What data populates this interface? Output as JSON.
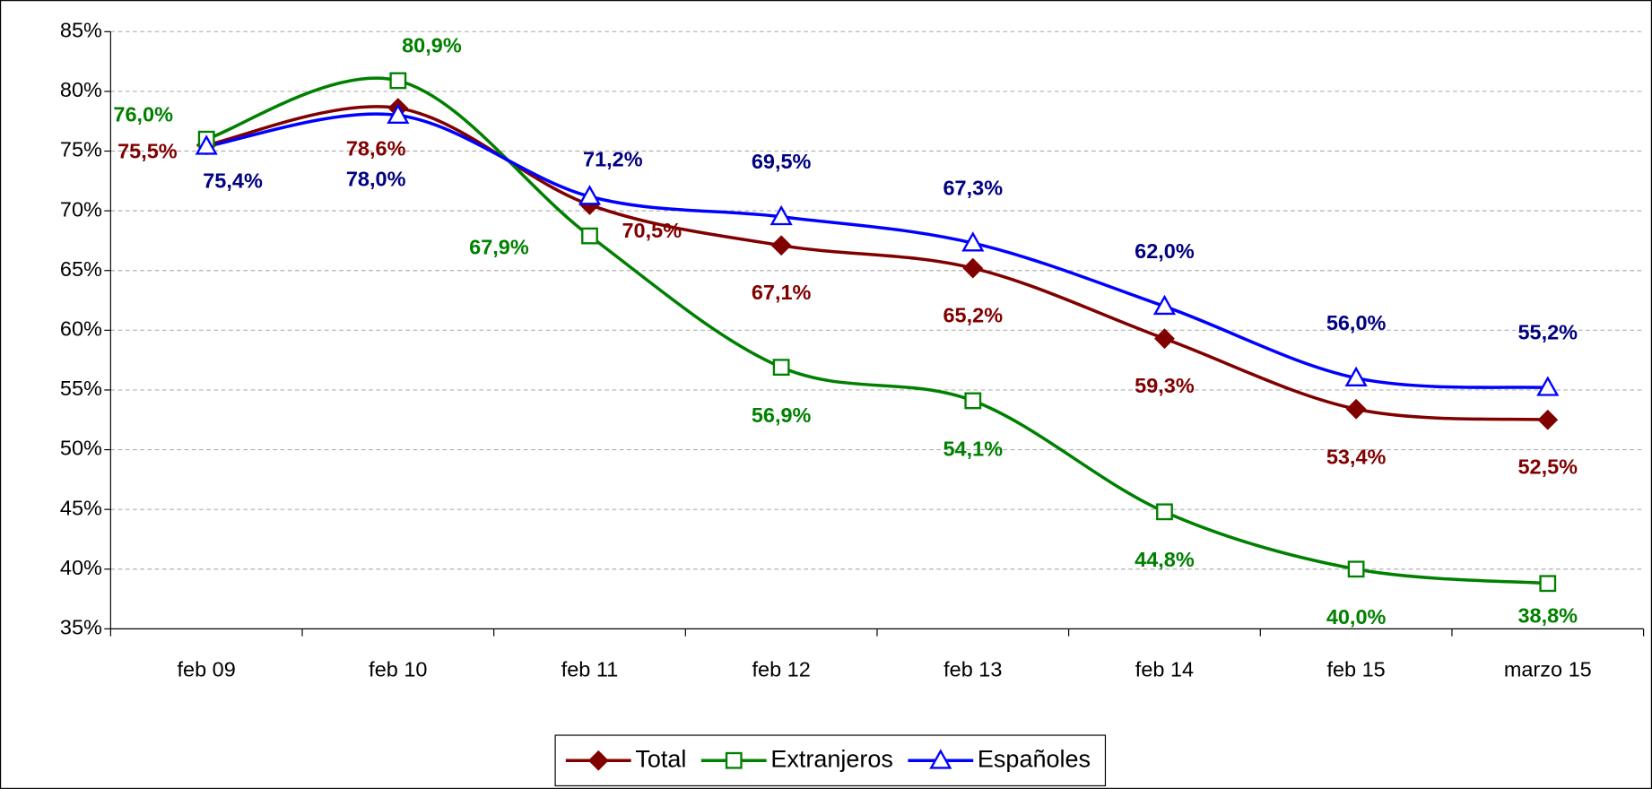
{
  "chart_data": {
    "type": "line",
    "categories": [
      "feb 09",
      "feb 10",
      "feb 11",
      "feb 12",
      "feb 13",
      "feb 14",
      "feb 15",
      "marzo 15"
    ],
    "series": [
      {
        "name": "Total",
        "color": "#800000",
        "label_color": "#800000",
        "marker": "diamond",
        "values": [
          75.5,
          78.6,
          70.5,
          67.1,
          65.2,
          59.3,
          53.4,
          52.5
        ],
        "value_labels": [
          "75,5%",
          "78,6%",
          "70,5%",
          "67,1%",
          "65,2%",
          "59,3%",
          "53,4%",
          "52,5%"
        ]
      },
      {
        "name": "Extranjeros",
        "color": "#008000",
        "label_color": "#008000",
        "marker": "square",
        "values": [
          76.0,
          80.9,
          67.9,
          56.9,
          54.1,
          44.8,
          40.0,
          38.8
        ],
        "value_labels": [
          "76,0%",
          "80,9%",
          "67,9%",
          "56,9%",
          "54,1%",
          "44,8%",
          "40,0%",
          "38,8%"
        ]
      },
      {
        "name": "Españoles",
        "color": "#0000ff",
        "label_color": "#000080",
        "marker": "triangle",
        "values": [
          75.4,
          78.0,
          71.2,
          69.5,
          67.3,
          62.0,
          56.0,
          55.2
        ],
        "value_labels": [
          "75,4%",
          "78,0%",
          "71,2%",
          "69,5%",
          "67,3%",
          "62,0%",
          "56,0%",
          "55,2%"
        ]
      }
    ],
    "ylim": [
      35,
      85
    ],
    "yticks": [
      {
        "value": 35,
        "label": "35%"
      },
      {
        "value": 40,
        "label": "40%"
      },
      {
        "value": 45,
        "label": "45%"
      },
      {
        "value": 50,
        "label": "50%"
      },
      {
        "value": 55,
        "label": "55%"
      },
      {
        "value": 60,
        "label": "60%"
      },
      {
        "value": 65,
        "label": "65%"
      },
      {
        "value": 70,
        "label": "70%"
      },
      {
        "value": 75,
        "label": "75%"
      },
      {
        "value": 80,
        "label": "80%"
      },
      {
        "value": 85,
        "label": "85%"
      }
    ],
    "grid": true,
    "smooth": true,
    "legend": "bottom"
  }
}
